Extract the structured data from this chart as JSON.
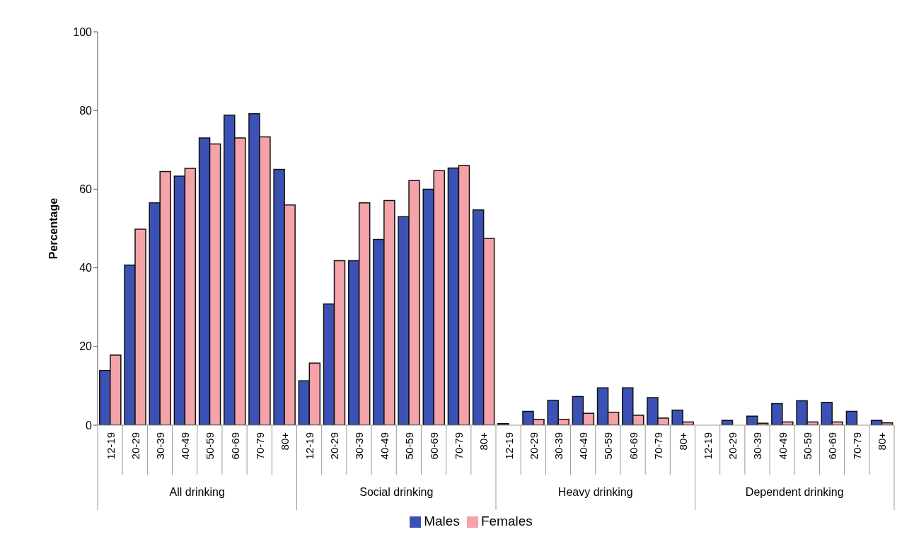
{
  "chart_data": {
    "type": "bar",
    "ylabel": "Percentage",
    "categories": [
      "12-19",
      "20-29",
      "30-39",
      "40-49",
      "50-59",
      "60-69",
      "70-79",
      "80+",
      "12-19",
      "20-29",
      "30-39",
      "40-49",
      "50-59",
      "60-69",
      "70-79",
      "80+",
      "12-19",
      "20-29",
      "30-39",
      "40-49",
      "50-59",
      "60-69",
      "70-79",
      "80+",
      "12-19",
      "20-29",
      "30-39",
      "40-49",
      "50-59",
      "60-69",
      "70-79",
      "80+"
    ],
    "series": [
      {
        "name": "Males",
        "color": "#3b52b4",
        "values": [
          13.9,
          40.7,
          56.5,
          63.3,
          73,
          78.8,
          79.2,
          65,
          11.3,
          30.8,
          41.8,
          47.2,
          53,
          60,
          65.4,
          54.7,
          0.4,
          3.5,
          6.3,
          7.3,
          9.5,
          9.5,
          7,
          3.8,
          0,
          1.2,
          2.3,
          5.5,
          6.2,
          5.8,
          3.5,
          1.2
        ]
      },
      {
        "name": "Females",
        "color": "#f4a3a8",
        "values": [
          17.8,
          49.8,
          64.5,
          65.3,
          71.5,
          73,
          73.3,
          56,
          15.8,
          41.8,
          56.5,
          57.1,
          62.2,
          64.7,
          66,
          47.5,
          0,
          1.5,
          1.5,
          3,
          3.3,
          2.5,
          1.8,
          0.8,
          0,
          0,
          0.5,
          0.8,
          0.8,
          0.8,
          0,
          0.6
        ]
      }
    ],
    "annotations": [
      "All drinking",
      "Social drinking",
      "Heavy drinking",
      "Dependent drinking"
    ],
    "ylim": [
      0,
      100
    ],
    "yticks": [
      0,
      20,
      40,
      60,
      80,
      100
    ],
    "legend": "bottom"
  }
}
